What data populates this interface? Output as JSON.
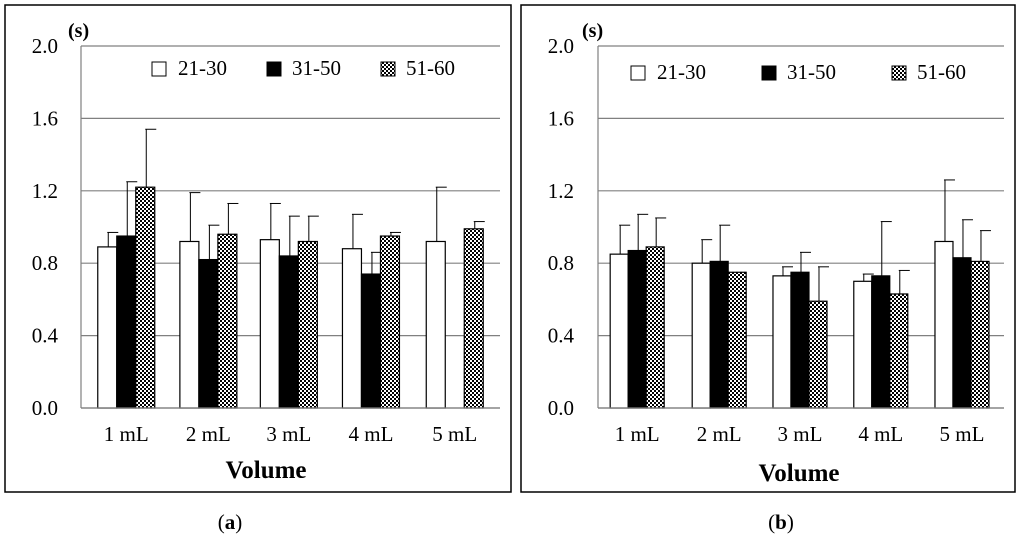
{
  "chart_data": [
    {
      "panel": "(a)",
      "type": "bar",
      "unit_label": "(s)",
      "xlabel": "Volume",
      "ylabel": "",
      "ylim": [
        0,
        2.0
      ],
      "yticks": [
        "0.0",
        "0.4",
        "0.8",
        "1.2",
        "1.6",
        "2.0"
      ],
      "categories": [
        "1 mL",
        "2 mL",
        "3 mL",
        "4 mL",
        "5 mL"
      ],
      "series": [
        {
          "name": "21-30",
          "values": [
            0.89,
            0.92,
            0.93,
            0.88,
            0.92
          ],
          "errors": [
            0.08,
            0.27,
            0.2,
            0.19,
            0.3
          ]
        },
        {
          "name": "31-50",
          "values": [
            0.95,
            0.82,
            0.84,
            0.74,
            null
          ],
          "errors": [
            0.3,
            0.19,
            0.22,
            0.12,
            null
          ]
        },
        {
          "name": "51-60",
          "values": [
            1.22,
            0.96,
            0.92,
            0.95,
            0.99
          ],
          "errors": [
            0.32,
            0.17,
            0.14,
            0.02,
            0.04
          ]
        }
      ],
      "grid": true,
      "legend": "top"
    },
    {
      "panel": "(b)",
      "type": "bar",
      "unit_label": "(s)",
      "xlabel": "Volume",
      "ylabel": "",
      "ylim": [
        0,
        2.0
      ],
      "yticks": [
        "0.0",
        "0.4",
        "0.8",
        "1.2",
        "1.6",
        "2.0"
      ],
      "categories": [
        "1 mL",
        "2 mL",
        "3 mL",
        "4 mL",
        "5 mL"
      ],
      "series": [
        {
          "name": "21-30",
          "values": [
            0.85,
            0.8,
            0.73,
            0.7,
            0.92
          ],
          "errors": [
            0.16,
            0.13,
            0.05,
            0.04,
            0.34
          ]
        },
        {
          "name": "31-50",
          "values": [
            0.87,
            0.81,
            0.75,
            0.73,
            0.83
          ],
          "errors": [
            0.2,
            0.2,
            0.11,
            0.3,
            0.21
          ]
        },
        {
          "name": "51-60",
          "values": [
            0.89,
            0.75,
            0.59,
            0.63,
            0.81
          ],
          "errors": [
            0.16,
            0.0,
            0.19,
            0.13,
            0.17
          ]
        }
      ],
      "grid": true,
      "legend": "top"
    }
  ],
  "captions": {
    "a": "a",
    "b": "b",
    "open": "(",
    "close": ")"
  },
  "colors": {
    "series1": "#ffffff",
    "series2": "#000000",
    "grid": "#808080",
    "border": "#000000"
  }
}
